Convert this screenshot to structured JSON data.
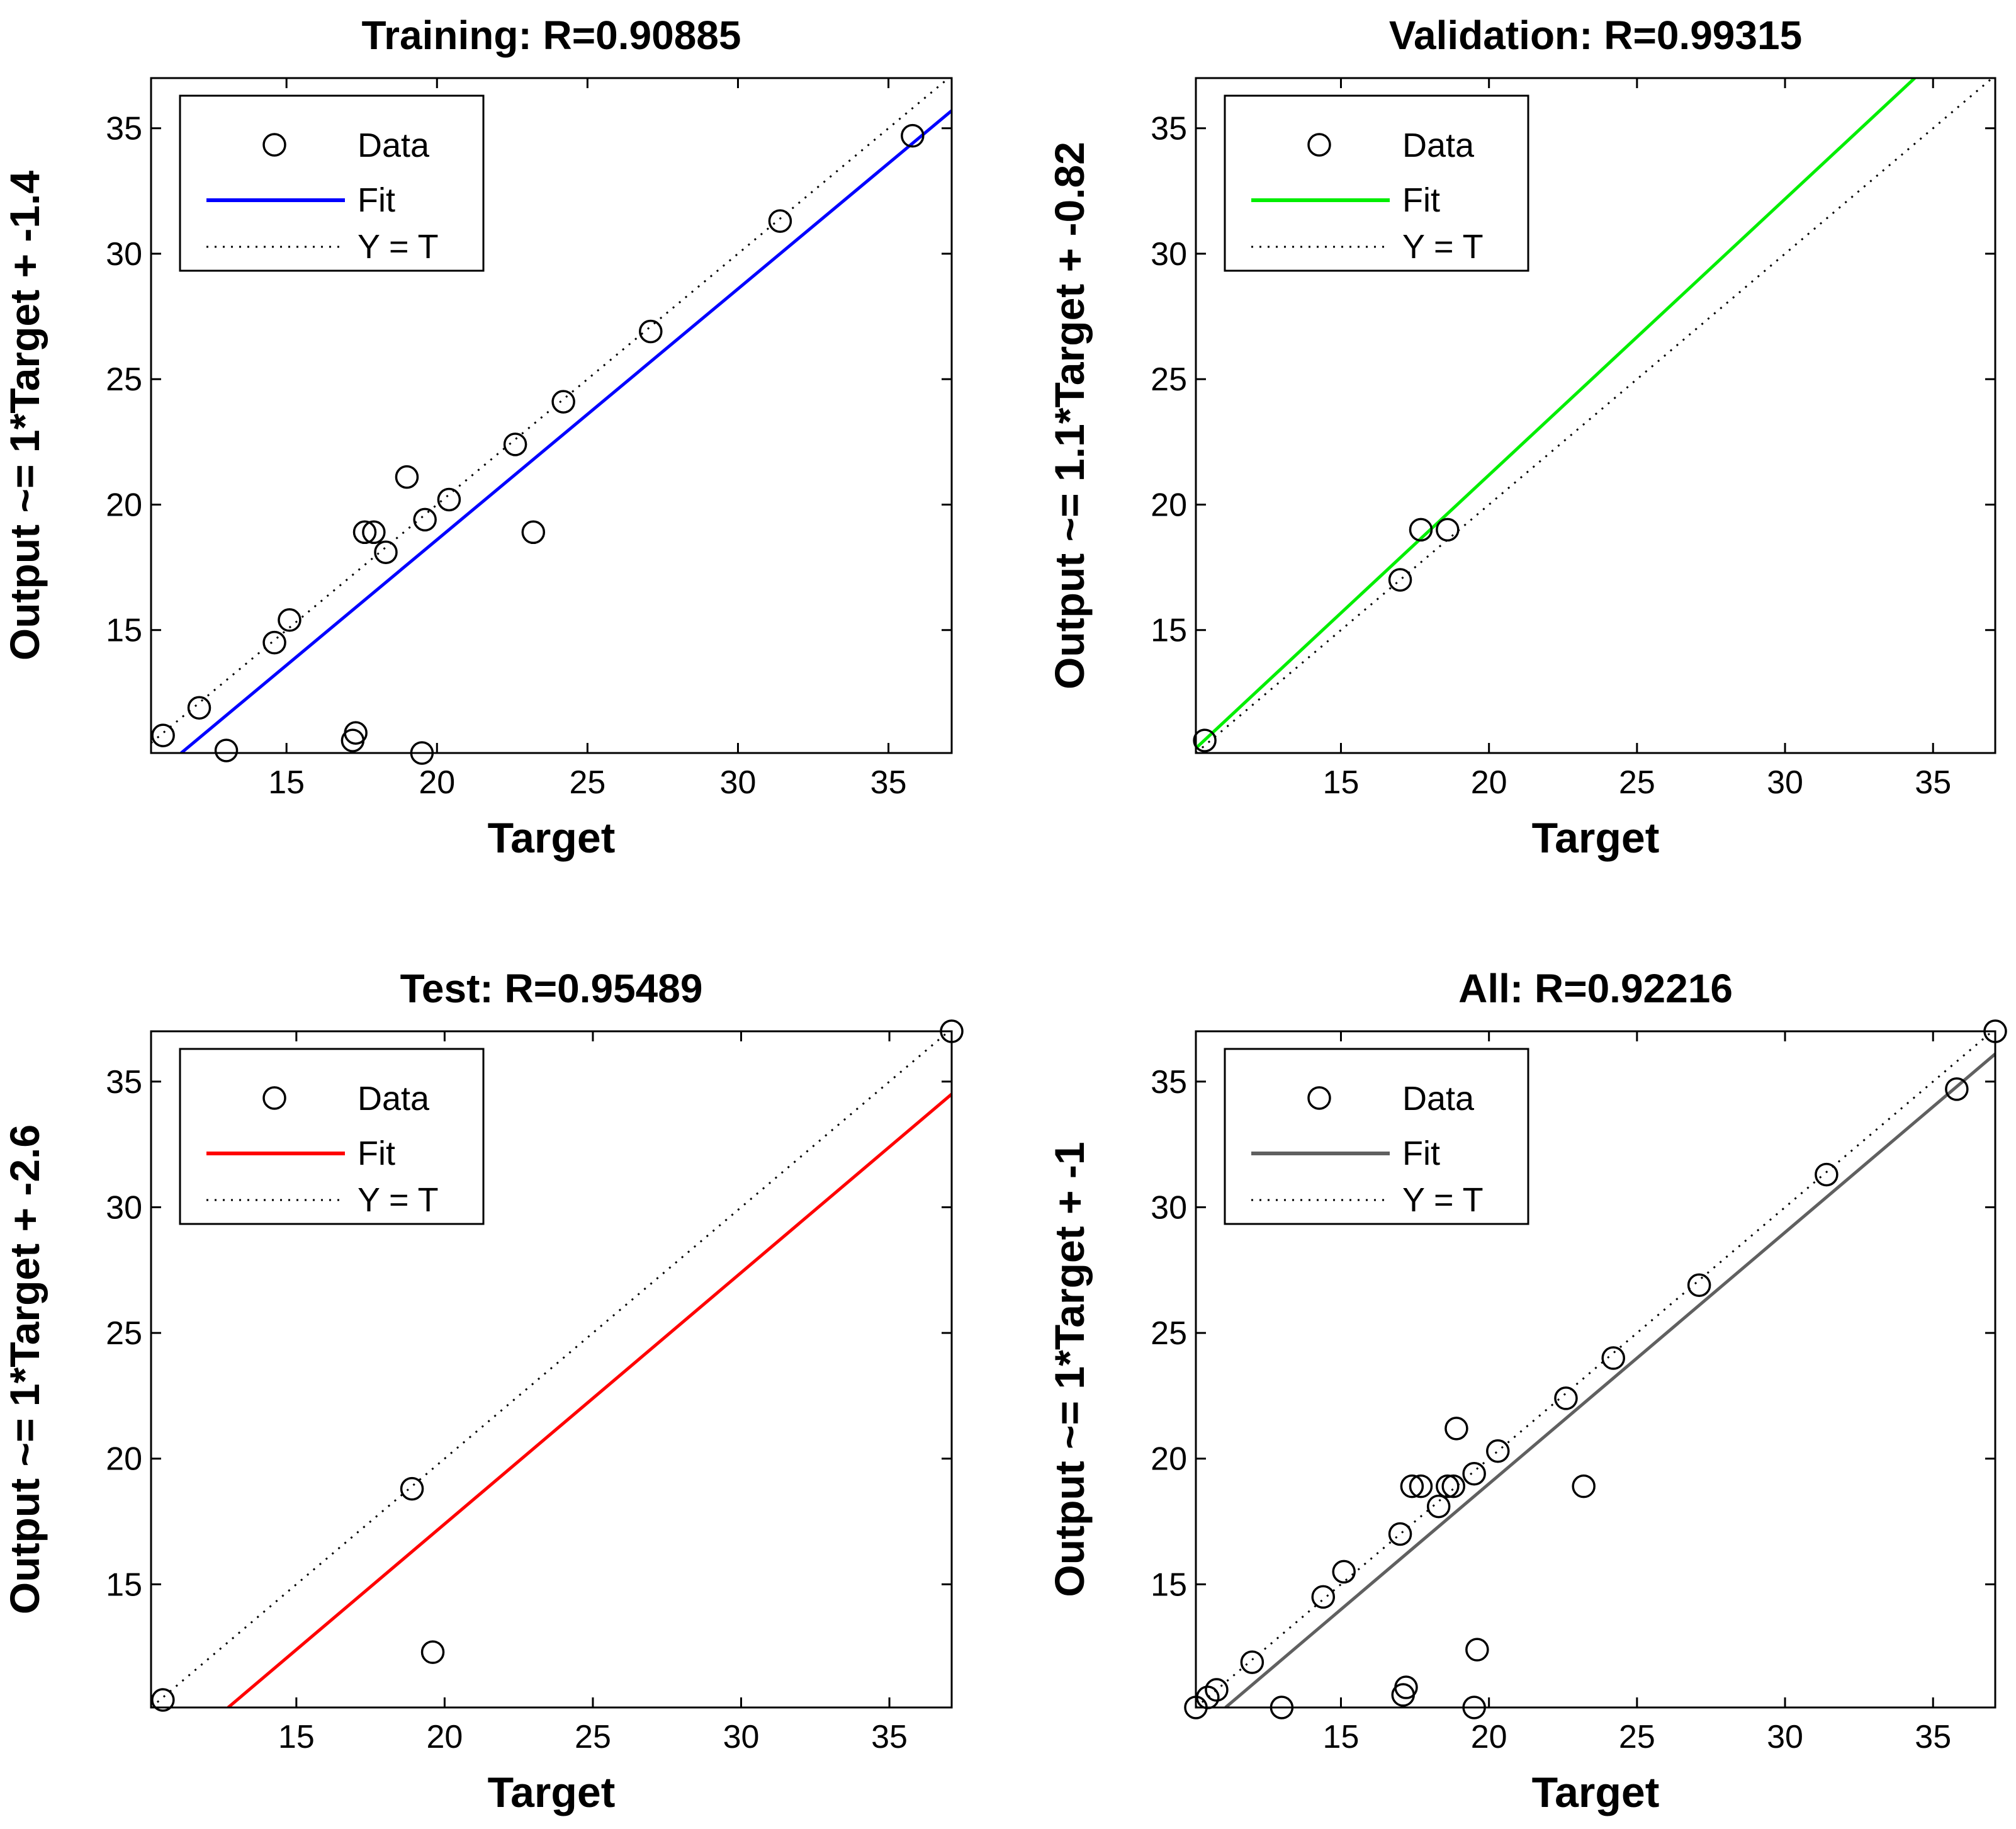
{
  "chart_data": [
    {
      "type": "scatter",
      "title": "Training: R=0.90885",
      "xlabel": "Target",
      "ylabel": "Output ~= 1*Target + -1.4",
      "xlim": [
        10.5,
        37.1
      ],
      "ylim": [
        10.1,
        37.0
      ],
      "xticks": [
        15,
        20,
        25,
        30,
        35
      ],
      "yticks": [
        15,
        20,
        25,
        30,
        35
      ],
      "xtick_labels": [
        "15",
        "20",
        "25",
        "30",
        "35"
      ],
      "ytick_labels": [
        "15",
        "20",
        "25",
        "30",
        "35"
      ],
      "fit_color": "#0000ff",
      "fit_line": {
        "slope": 1.0,
        "intercept": -1.4
      },
      "legend": {
        "data": "Data",
        "fit": "Fit",
        "yt": "Y = T",
        "position": "top-left"
      },
      "points": [
        {
          "x": 10.9,
          "y": 10.8
        },
        {
          "x": 12.1,
          "y": 11.9
        },
        {
          "x": 13.0,
          "y": 10.2
        },
        {
          "x": 14.6,
          "y": 14.5
        },
        {
          "x": 15.1,
          "y": 15.4
        },
        {
          "x": 17.2,
          "y": 10.6
        },
        {
          "x": 17.3,
          "y": 10.9
        },
        {
          "x": 17.6,
          "y": 18.9
        },
        {
          "x": 17.9,
          "y": 18.9
        },
        {
          "x": 18.3,
          "y": 18.1
        },
        {
          "x": 19.0,
          "y": 21.1
        },
        {
          "x": 19.5,
          "y": 10.1
        },
        {
          "x": 19.6,
          "y": 19.4
        },
        {
          "x": 20.4,
          "y": 20.2
        },
        {
          "x": 22.6,
          "y": 22.4
        },
        {
          "x": 23.2,
          "y": 18.9
        },
        {
          "x": 24.2,
          "y": 24.1
        },
        {
          "x": 27.1,
          "y": 26.9
        },
        {
          "x": 31.4,
          "y": 31.3
        },
        {
          "x": 35.8,
          "y": 34.7
        }
      ]
    },
    {
      "type": "scatter",
      "title": "Validation: R=0.99315",
      "xlabel": "Target",
      "ylabel": "Output ~= 1.1*Target + -0.82",
      "xlim": [
        10.1,
        37.1
      ],
      "ylim": [
        10.1,
        37.0
      ],
      "xticks": [
        15,
        20,
        25,
        30,
        35
      ],
      "yticks": [
        15,
        20,
        25,
        30,
        35
      ],
      "xtick_labels": [
        "15",
        "20",
        "25",
        "30",
        "35"
      ],
      "ytick_labels": [
        "15",
        "20",
        "25",
        "30",
        "35"
      ],
      "fit_color": "#00ee00",
      "fit_line": {
        "slope": 1.1,
        "intercept": -0.82
      },
      "legend": {
        "data": "Data",
        "fit": "Fit",
        "yt": "Y = T",
        "position": "top-left"
      },
      "points": [
        {
          "x": 10.4,
          "y": 10.6
        },
        {
          "x": 17.0,
          "y": 17.0
        },
        {
          "x": 17.7,
          "y": 19.0
        },
        {
          "x": 18.6,
          "y": 19.0
        }
      ]
    },
    {
      "type": "scatter",
      "title": "Test: R=0.95489",
      "xlabel": "Target",
      "ylabel": "Output ~= 1*Target + -2.6",
      "xlim": [
        10.1,
        37.1
      ],
      "ylim": [
        10.1,
        37.0
      ],
      "xticks": [
        15,
        20,
        25,
        30,
        35
      ],
      "yticks": [
        15,
        20,
        25,
        30,
        35
      ],
      "xtick_labels": [
        "15",
        "20",
        "25",
        "30",
        "35"
      ],
      "ytick_labels": [
        "15",
        "20",
        "25",
        "30",
        "35"
      ],
      "fit_color": "#ff0000",
      "fit_line": {
        "slope": 1.0,
        "intercept": -2.6
      },
      "legend": {
        "data": "Data",
        "fit": "Fit",
        "yt": "Y = T",
        "position": "top-left"
      },
      "points": [
        {
          "x": 10.5,
          "y": 10.4
        },
        {
          "x": 18.9,
          "y": 18.8
        },
        {
          "x": 19.6,
          "y": 12.3
        },
        {
          "x": 37.1,
          "y": 37.0
        }
      ]
    },
    {
      "type": "scatter",
      "title": "All: R=0.92216",
      "xlabel": "Target",
      "ylabel": "Output ~= 1*Target + -1",
      "xlim": [
        10.1,
        37.1
      ],
      "ylim": [
        10.1,
        37.0
      ],
      "xticks": [
        15,
        20,
        25,
        30,
        35
      ],
      "yticks": [
        15,
        20,
        25,
        30,
        35
      ],
      "xtick_labels": [
        "15",
        "20",
        "25",
        "30",
        "35"
      ],
      "ytick_labels": [
        "15",
        "20",
        "25",
        "30",
        "35"
      ],
      "fit_color": "#606060",
      "fit_line": {
        "slope": 1.0,
        "intercept": -1.0
      },
      "legend": {
        "data": "Data",
        "fit": "Fit",
        "yt": "Y = T",
        "position": "top-left"
      },
      "points": [
        {
          "x": 10.1,
          "y": 10.1
        },
        {
          "x": 10.5,
          "y": 10.5
        },
        {
          "x": 10.8,
          "y": 10.8
        },
        {
          "x": 12.0,
          "y": 11.9
        },
        {
          "x": 13.0,
          "y": 10.1
        },
        {
          "x": 14.4,
          "y": 14.5
        },
        {
          "x": 15.1,
          "y": 15.5
        },
        {
          "x": 17.0,
          "y": 17.0
        },
        {
          "x": 17.1,
          "y": 10.6
        },
        {
          "x": 17.2,
          "y": 10.9
        },
        {
          "x": 17.4,
          "y": 18.9
        },
        {
          "x": 17.7,
          "y": 18.9
        },
        {
          "x": 18.6,
          "y": 18.9
        },
        {
          "x": 18.8,
          "y": 18.9
        },
        {
          "x": 18.3,
          "y": 18.1
        },
        {
          "x": 18.9,
          "y": 21.2
        },
        {
          "x": 19.5,
          "y": 10.1
        },
        {
          "x": 19.6,
          "y": 12.4
        },
        {
          "x": 19.5,
          "y": 19.4
        },
        {
          "x": 20.3,
          "y": 20.3
        },
        {
          "x": 22.6,
          "y": 22.4
        },
        {
          "x": 23.2,
          "y": 18.9
        },
        {
          "x": 24.2,
          "y": 24.0
        },
        {
          "x": 27.1,
          "y": 26.9
        },
        {
          "x": 31.4,
          "y": 31.3
        },
        {
          "x": 35.8,
          "y": 34.7
        },
        {
          "x": 37.1,
          "y": 37.0
        }
      ]
    }
  ]
}
